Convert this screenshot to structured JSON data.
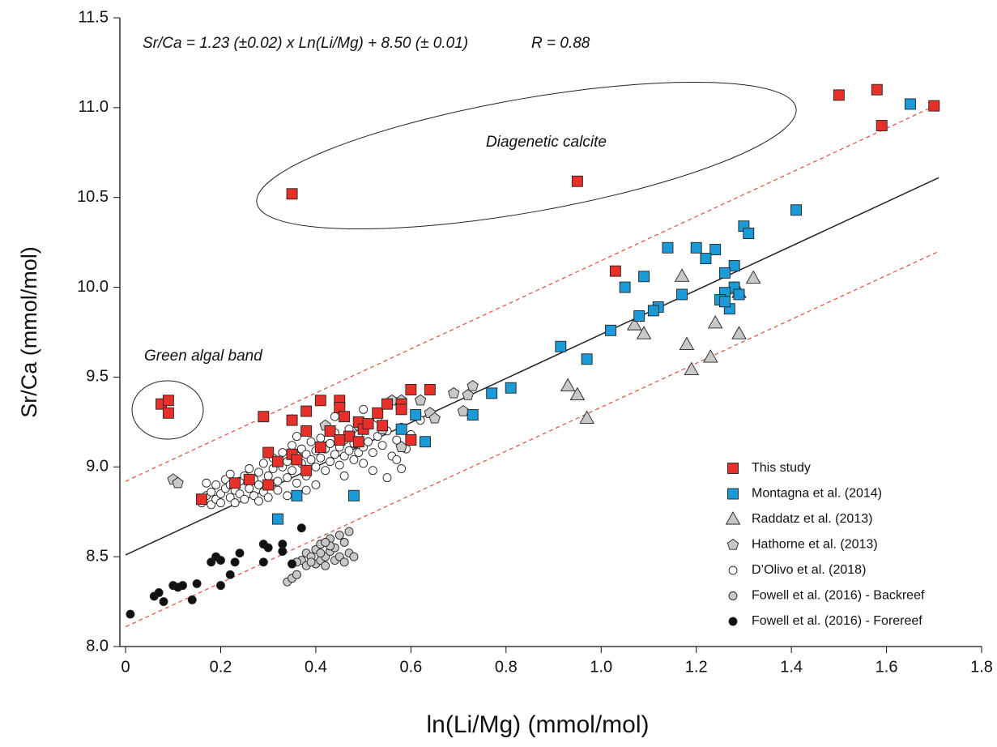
{
  "chart_data": {
    "type": "scatter",
    "x_label": "ln(Li/Mg) (mmol/mol)",
    "y_label": "Sr/Ca (mmol/mol)",
    "annotations": [
      "Sr/Ca = 1.23 (±0.02) x Ln(Li/Mg) + 8.50 (± 0.01)",
      "R = 0.88",
      "Diagenetic calcite",
      "Green algal band"
    ],
    "xlim": [
      -0.012,
      1.8
    ],
    "ylim": [
      8,
      11.5
    ],
    "xticks": [
      0,
      0.2,
      0.4,
      0.6,
      0.8,
      {
        "value": 1,
        "label": "1.0"
      },
      1.2,
      1.4,
      1.6,
      1.8
    ],
    "yticks": [
      {
        "value": 8,
        "label": "8.0"
      },
      8.5,
      {
        "value": 9,
        "label": "9.0"
      },
      9.5,
      {
        "value": 10,
        "label": "10.0"
      },
      10.5,
      {
        "value": 11,
        "label": "11.0"
      },
      11.5
    ],
    "legend": "lower right",
    "lines": [
      {
        "color": "#222222",
        "dash": false,
        "x": [
          0,
          1.71
        ],
        "y": [
          8.51,
          10.61
        ]
      },
      {
        "color": "#e05a4a",
        "dash": true,
        "x": [
          0,
          1.71
        ],
        "y": [
          8.92,
          11.02
        ]
      },
      {
        "color": "#e05a4a",
        "dash": true,
        "x": [
          0,
          1.71
        ],
        "y": [
          8.11,
          10.2
        ]
      }
    ],
    "series": [
      {
        "name": "This study",
        "color": "#e8302a",
        "marker": "square",
        "x": [
          1.5,
          1.58,
          1.59,
          1.7,
          0.95,
          0.35,
          1.03,
          0.075,
          0.09,
          0.09,
          0.16,
          0.23,
          0.26,
          0.29,
          0.3,
          0.3,
          0.32,
          0.35,
          0.35,
          0.36,
          0.38,
          0.38,
          0.38,
          0.41,
          0.41,
          0.43,
          0.45,
          0.45,
          0.46,
          0.47,
          0.49,
          0.49,
          0.5,
          0.51,
          0.53,
          0.54,
          0.55,
          0.58,
          0.58,
          0.6,
          0.6,
          0.64,
          0.45
        ],
        "y": [
          11.07,
          11.1,
          10.9,
          11.01,
          10.59,
          10.52,
          10.09,
          9.35,
          9.37,
          9.3,
          8.82,
          8.91,
          8.93,
          9.28,
          8.9,
          9.08,
          9.03,
          9.07,
          9.26,
          9.04,
          9.31,
          9.2,
          8.98,
          9.11,
          9.37,
          9.2,
          9.37,
          9.33,
          9.28,
          9.17,
          9.14,
          9.25,
          9.21,
          9.24,
          9.3,
          9.23,
          9.35,
          9.35,
          9.32,
          9.43,
          9.15,
          9.43,
          9.15
        ]
      },
      {
        "name": "Montagna et al. (2014)",
        "color": "#1a9ad6",
        "marker": "square",
        "x": [
          1.65,
          1.41,
          1.3,
          1.31,
          1.14,
          1.2,
          1.24,
          1.22,
          1.28,
          1.26,
          1.09,
          1.05,
          1.17,
          1.28,
          1.29,
          1.26,
          1.25,
          1.27,
          1.26,
          1.12,
          1.11,
          1.08,
          1.02,
          0.97,
          0.915,
          0.81,
          0.77,
          0.73,
          0.61,
          0.58,
          0.63,
          0.48,
          0.36,
          0.32
        ],
        "y": [
          11.02,
          10.43,
          10.34,
          10.3,
          10.22,
          10.22,
          10.21,
          10.16,
          10.12,
          10.08,
          10.06,
          10.0,
          9.96,
          10.0,
          9.96,
          9.97,
          9.93,
          9.88,
          9.92,
          9.89,
          9.87,
          9.84,
          9.76,
          9.6,
          9.67,
          9.44,
          9.41,
          9.29,
          9.29,
          9.21,
          9.14,
          8.84,
          8.84,
          8.71
        ]
      },
      {
        "name": "Raddatz et al. (2013)",
        "color": "#c8c8c8",
        "marker": "triangle",
        "x": [
          1.17,
          1.32,
          1.07,
          1.09,
          1.24,
          1.29,
          1.18,
          1.23,
          1.19,
          0.93,
          0.95,
          0.97,
          1.29,
          1.28
        ],
        "y": [
          10.06,
          10.05,
          9.79,
          9.74,
          9.8,
          9.74,
          9.68,
          9.61,
          9.54,
          9.45,
          9.4,
          9.27,
          9.97,
          9.99
        ]
      },
      {
        "name": "Hathorne et al. (2013)",
        "color": "#c8c8c8",
        "marker": "pentagon",
        "x": [
          0.1,
          0.11,
          0.35,
          0.42,
          0.49,
          0.58,
          0.62,
          0.64,
          0.69,
          0.71,
          0.72,
          0.73,
          0.56,
          0.65,
          0.58,
          0.54
        ],
        "y": [
          8.93,
          8.91,
          9.26,
          9.23,
          9.23,
          9.37,
          9.37,
          9.3,
          9.41,
          9.31,
          9.4,
          9.45,
          9.37,
          9.27,
          9.11,
          9.21
        ]
      },
      {
        "name": "D’Olivo et al. (2018)",
        "color": "#ffffff",
        "marker": "circle",
        "x": [
          0.16,
          0.17,
          0.18,
          0.18,
          0.19,
          0.19,
          0.2,
          0.2,
          0.21,
          0.21,
          0.22,
          0.22,
          0.23,
          0.23,
          0.24,
          0.24,
          0.25,
          0.25,
          0.26,
          0.26,
          0.27,
          0.27,
          0.28,
          0.28,
          0.29,
          0.29,
          0.3,
          0.3,
          0.31,
          0.31,
          0.32,
          0.32,
          0.33,
          0.33,
          0.34,
          0.34,
          0.35,
          0.35,
          0.36,
          0.36,
          0.37,
          0.37,
          0.38,
          0.38,
          0.39,
          0.39,
          0.4,
          0.4,
          0.4,
          0.41,
          0.41,
          0.42,
          0.42,
          0.43,
          0.43,
          0.44,
          0.44,
          0.45,
          0.45,
          0.46,
          0.46,
          0.47,
          0.47,
          0.48,
          0.48,
          0.49,
          0.49,
          0.5,
          0.5,
          0.51,
          0.51,
          0.52,
          0.53,
          0.53,
          0.54,
          0.55,
          0.56,
          0.57,
          0.57,
          0.58,
          0.58,
          0.59,
          0.6,
          0.55,
          0.52,
          0.46,
          0.38,
          0.34,
          0.28,
          0.22,
          0.17,
          0.44,
          0.36,
          0.62,
          0.5
        ],
        "y": [
          8.8,
          8.84,
          8.79,
          8.86,
          8.82,
          8.9,
          8.85,
          8.8,
          8.88,
          8.93,
          8.83,
          8.96,
          8.87,
          8.8,
          8.92,
          8.85,
          8.95,
          8.82,
          8.88,
          8.99,
          8.84,
          8.93,
          8.9,
          8.97,
          8.86,
          9.02,
          8.95,
          8.83,
          8.99,
          9.05,
          8.92,
          8.87,
          9.0,
          9.08,
          8.94,
          9.03,
          8.98,
          9.12,
          8.91,
          9.06,
          9.02,
          9.1,
          8.95,
          9.07,
          9.04,
          9.14,
          8.9,
          9.0,
          9.09,
          9.05,
          9.16,
          8.98,
          9.1,
          9.03,
          9.13,
          9.07,
          9.19,
          9.01,
          9.11,
          9.06,
          9.15,
          9.09,
          9.21,
          9.04,
          9.13,
          9.08,
          9.18,
          9.11,
          9.02,
          9.14,
          9.24,
          9.08,
          9.17,
          9.27,
          9.12,
          9.2,
          9.06,
          9.15,
          9.04,
          8.99,
          9.22,
          9.1,
          9.18,
          8.94,
          8.98,
          8.95,
          8.87,
          8.84,
          8.81,
          8.9,
          8.91,
          9.28,
          9.17,
          9.26,
          9.32
        ]
      },
      {
        "name": "Fowell et al. (2016) - Backreef",
        "color": "#c8c8c8",
        "marker": "circle",
        "x": [
          0.34,
          0.35,
          0.35,
          0.36,
          0.37,
          0.38,
          0.38,
          0.39,
          0.4,
          0.4,
          0.41,
          0.41,
          0.42,
          0.42,
          0.43,
          0.43,
          0.44,
          0.44,
          0.45,
          0.45,
          0.46,
          0.46,
          0.47,
          0.47,
          0.48,
          0.43,
          0.42,
          0.39,
          0.36,
          0.41
        ],
        "y": [
          8.36,
          8.38,
          8.46,
          8.4,
          8.48,
          8.52,
          8.45,
          8.5,
          8.46,
          8.54,
          8.48,
          8.57,
          8.5,
          8.45,
          8.53,
          8.6,
          8.48,
          8.55,
          8.62,
          8.5,
          8.58,
          8.47,
          8.64,
          8.52,
          8.5,
          8.56,
          8.58,
          8.47,
          8.47,
          8.52
        ]
      },
      {
        "name": "Fowell et al. (2016) - Forereef",
        "color": "#111111",
        "marker": "circle",
        "x": [
          0.01,
          0.06,
          0.07,
          0.08,
          0.1,
          0.11,
          0.12,
          0.14,
          0.15,
          0.18,
          0.19,
          0.2,
          0.2,
          0.22,
          0.23,
          0.24,
          0.29,
          0.29,
          0.3,
          0.33,
          0.33,
          0.37,
          0.35
        ],
        "y": [
          8.18,
          8.28,
          8.3,
          8.25,
          8.34,
          8.33,
          8.34,
          8.26,
          8.35,
          8.47,
          8.5,
          8.34,
          8.48,
          8.4,
          8.47,
          8.52,
          8.57,
          8.47,
          8.55,
          8.57,
          8.53,
          8.66,
          8.46
        ]
      }
    ]
  }
}
